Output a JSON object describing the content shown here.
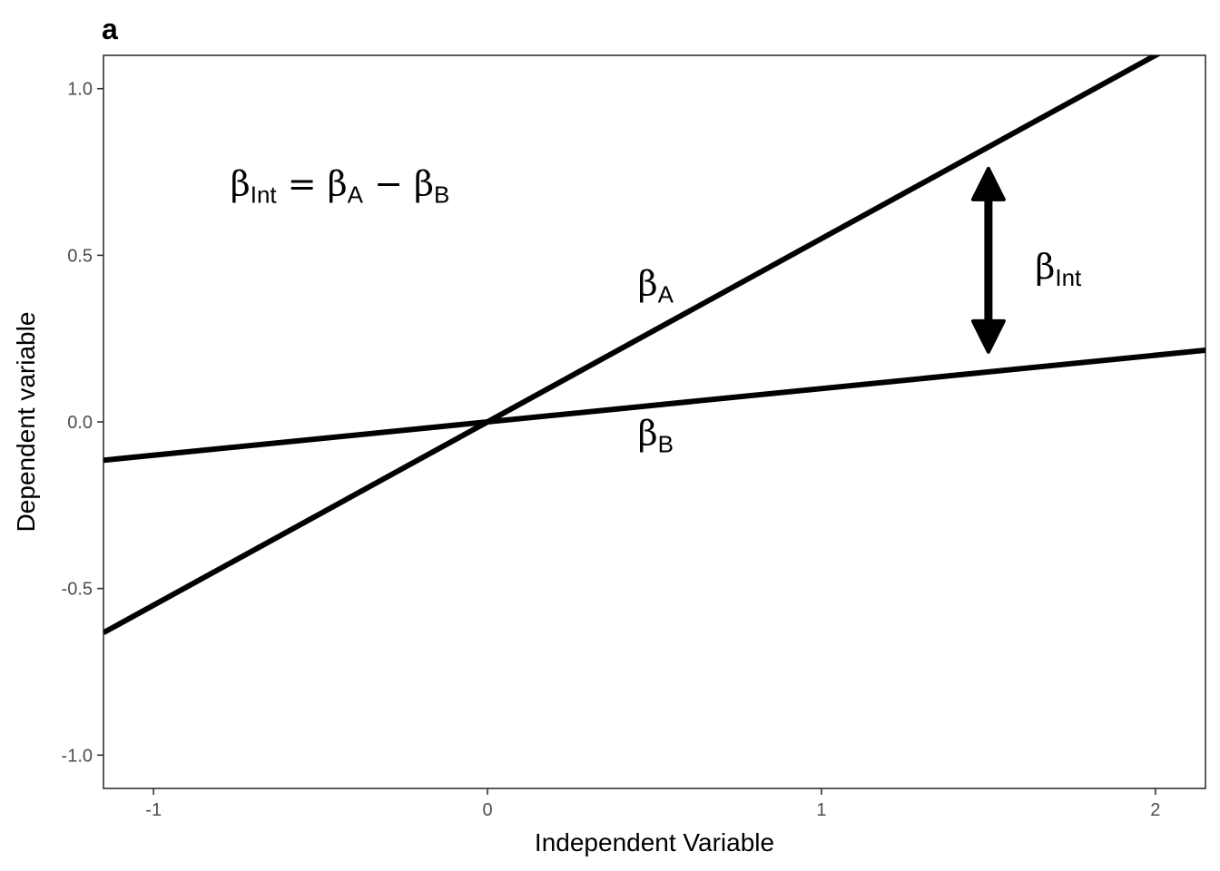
{
  "chart_data": {
    "type": "line",
    "panel_label": "a",
    "xlabel": "Independent Variable",
    "ylabel": "Dependent variable",
    "xlim": [
      -1.15,
      2.15
    ],
    "ylim": [
      -1.1,
      1.1
    ],
    "x_ticks": [
      -1,
      0,
      1,
      2
    ],
    "x_tick_labels": [
      "-1",
      "0",
      "1",
      "2"
    ],
    "y_ticks": [
      -1.0,
      -0.5,
      0.0,
      0.5,
      1.0
    ],
    "y_tick_labels": [
      "-1.0",
      "-0.5",
      "0.0",
      "0.5",
      "1.0"
    ],
    "grid": false,
    "line_color": "#000000",
    "series": [
      {
        "label_symbol": "β",
        "label_sub": "A",
        "slope": 0.55,
        "label_at": [
          0.45,
          0.38
        ]
      },
      {
        "label_symbol": "β",
        "label_sub": "B",
        "slope": 0.1,
        "label_at": [
          0.45,
          -0.07
        ]
      }
    ],
    "arrow": {
      "x": 1.5,
      "y_top": 0.76,
      "y_bottom": 0.21,
      "label_symbol": "β",
      "label_sub": "Int",
      "label_at": [
        1.64,
        0.43
      ]
    },
    "equation": {
      "parts": [
        "β",
        "Int",
        " = ",
        "β",
        "A",
        " − ",
        "β",
        "B"
      ],
      "at": [
        -0.77,
        0.68
      ]
    }
  }
}
